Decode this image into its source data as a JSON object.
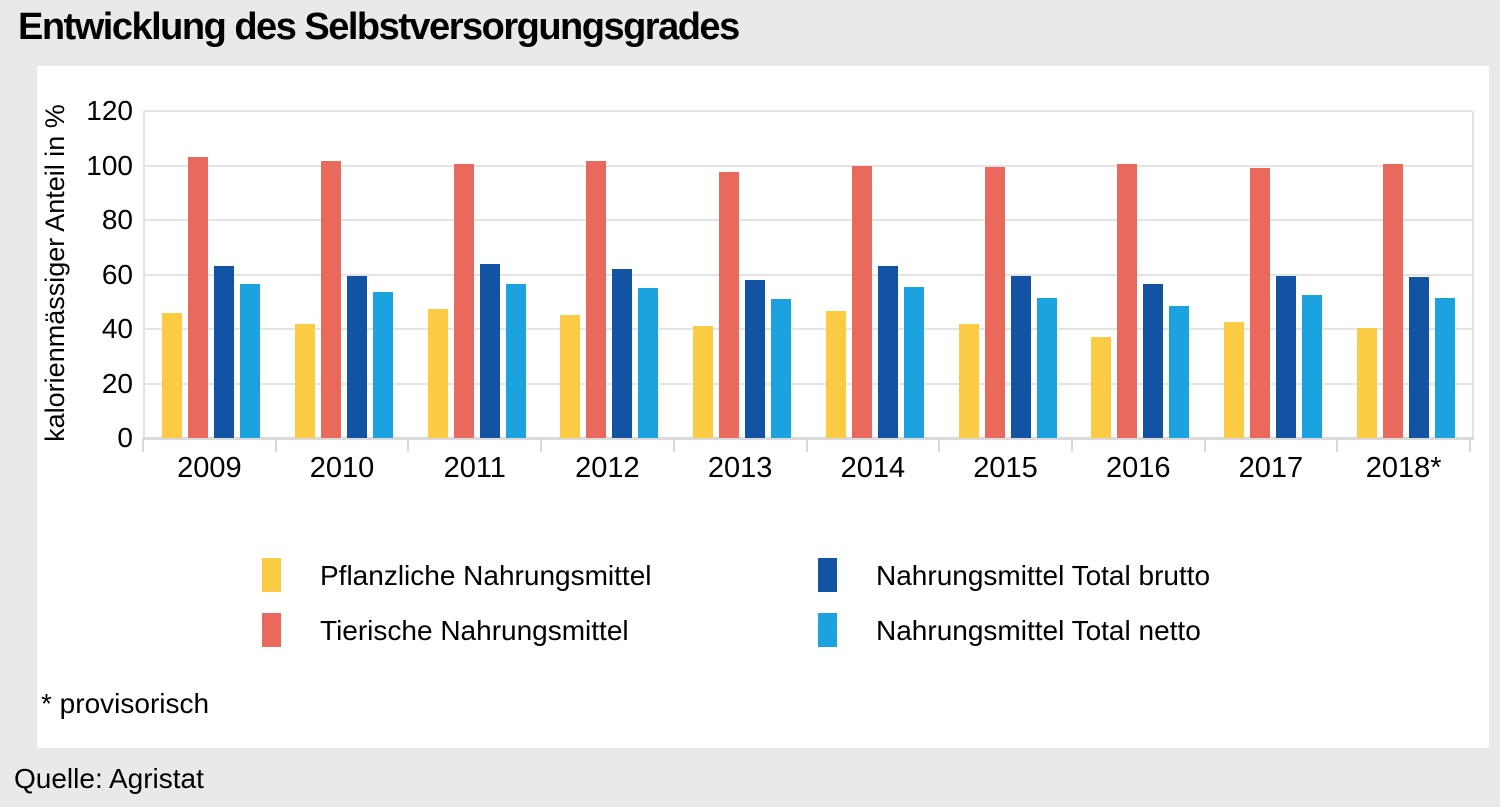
{
  "page": {
    "title": "Entwicklung des Selbstversorgungsgrades",
    "footnote": "* provisorisch",
    "source": "Quelle: Agristat"
  },
  "colors": {
    "background": "#e9e9e9",
    "card": "#ffffff",
    "gridline": "#e4e4e4",
    "axis": "#dadada",
    "text": "#000000",
    "series_yellow": "#fbcb43",
    "series_red": "#e96a5c",
    "series_darkblue": "#1353a3",
    "series_lightblue": "#1ca3df"
  },
  "chart_data": {
    "type": "bar",
    "title": "Entwicklung des Selbstversorgungsgrades",
    "xlabel": "",
    "ylabel": "kalorienmässiger Anteil in %",
    "ylim": [
      0,
      120
    ],
    "ytick_interval": 20,
    "grid": true,
    "legend_position": "bottom",
    "categories": [
      "2009",
      "2010",
      "2011",
      "2012",
      "2013",
      "2014",
      "2015",
      "2016",
      "2017",
      "2018*"
    ],
    "series": [
      {
        "name": "Pflanzliche Nahrungsmittel",
        "color": "#fbcb43",
        "values": [
          46,
          42,
          47.5,
          45,
          41,
          46.5,
          42,
          37,
          42.5,
          40.5
        ]
      },
      {
        "name": "Tierische Nahrungsmittel",
        "color": "#e96a5c",
        "values": [
          103,
          101.5,
          100.5,
          101.5,
          97.5,
          100,
          99.5,
          100.5,
          99,
          100.5
        ]
      },
      {
        "name": "Nahrungsmittel Total brutto",
        "color": "#1353a3",
        "values": [
          63,
          59.5,
          64,
          62,
          58,
          63,
          59.5,
          56.5,
          59.5,
          59
        ]
      },
      {
        "name": "Nahrungsmittel Total netto",
        "color": "#1ca3df",
        "values": [
          56.5,
          53.5,
          56.5,
          55,
          51,
          55.5,
          51.5,
          48.5,
          52.5,
          51.5
        ]
      }
    ]
  }
}
